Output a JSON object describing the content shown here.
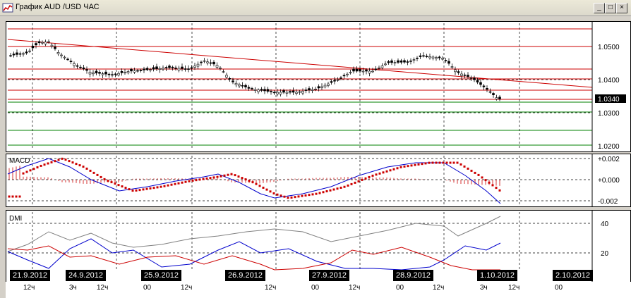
{
  "window": {
    "title": "График AUD /USD  ЧАС",
    "minimize": "_",
    "maximize": "□",
    "close": "×"
  },
  "price_panel": {
    "axis_labels": [
      "1.0500",
      "1.0400",
      "1.0340",
      "1.0300",
      "1.0200"
    ],
    "current_price": "1.0340"
  },
  "macd_panel": {
    "title": "MACD",
    "axis_labels": [
      "+0.002",
      "+0.000",
      "-0.002"
    ]
  },
  "dmi_panel": {
    "title": "DMI",
    "axis_labels": [
      "40",
      "20"
    ]
  },
  "dates": [
    "21.9.2012",
    "24.9.2012",
    "25.9.2012",
    "26.9.2012",
    "27.9.2012",
    "28.9.2012",
    "1.10.2012",
    "2.10.2012"
  ],
  "hours": [
    "12ч",
    "3ч",
    "12ч",
    "00",
    "12ч",
    "12ч",
    "00",
    "12ч",
    "00",
    "12ч",
    "3ч",
    "12ч",
    "00"
  ],
  "colors": {
    "candle": "#000000",
    "trendline": "#cc0000",
    "support_lines": "#008000",
    "macd_line": "#0000cc",
    "signal_dots": "#cc0000",
    "dmi_plus": "#0000cc",
    "dmi_minus": "#cc0000",
    "adx": "#808080"
  }
}
